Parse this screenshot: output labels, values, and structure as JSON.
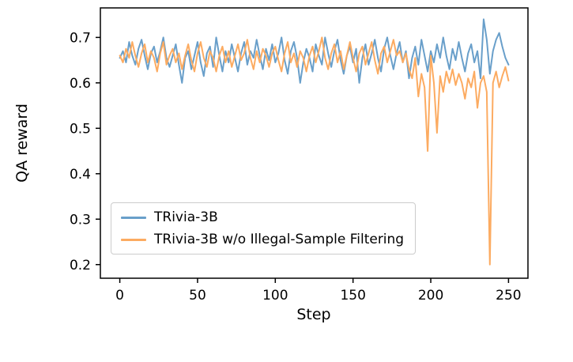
{
  "figure": {
    "background": "#ffffff",
    "axis_color": "#000000",
    "tick_label_color": "#000000"
  },
  "chart_data": {
    "type": "line",
    "title": "",
    "xlabel": "Step",
    "ylabel": "QA reward",
    "xlim": [
      -12.5,
      262.5
    ],
    "ylim": [
      0.17,
      0.765
    ],
    "xticks": [
      0,
      50,
      100,
      150,
      200,
      250
    ],
    "yticks": [
      0.2,
      0.3,
      0.4,
      0.5,
      0.6,
      0.7
    ],
    "grid": false,
    "legend_position": "lower left",
    "x": [
      0,
      2,
      4,
      6,
      8,
      10,
      12,
      14,
      16,
      18,
      20,
      22,
      24,
      26,
      28,
      30,
      32,
      34,
      36,
      38,
      40,
      42,
      44,
      46,
      48,
      50,
      52,
      54,
      56,
      58,
      60,
      62,
      64,
      66,
      68,
      70,
      72,
      74,
      76,
      78,
      80,
      82,
      84,
      86,
      88,
      90,
      92,
      94,
      96,
      98,
      100,
      102,
      104,
      106,
      108,
      110,
      112,
      114,
      116,
      118,
      120,
      122,
      124,
      126,
      128,
      130,
      132,
      134,
      136,
      138,
      140,
      142,
      144,
      146,
      148,
      150,
      152,
      154,
      156,
      158,
      160,
      162,
      164,
      166,
      168,
      170,
      172,
      174,
      176,
      178,
      180,
      182,
      184,
      186,
      188,
      190,
      192,
      194,
      196,
      198,
      200,
      202,
      204,
      206,
      208,
      210,
      212,
      214,
      216,
      218,
      220,
      222,
      224,
      226,
      228,
      230,
      232,
      234,
      236,
      238,
      240,
      242,
      244,
      246,
      248,
      250
    ],
    "series": [
      {
        "name": "TRivia-3B",
        "color": "#699fca",
        "values": [
          0.655,
          0.67,
          0.645,
          0.69,
          0.66,
          0.64,
          0.675,
          0.695,
          0.66,
          0.63,
          0.665,
          0.68,
          0.645,
          0.67,
          0.7,
          0.655,
          0.635,
          0.66,
          0.685,
          0.64,
          0.6,
          0.655,
          0.67,
          0.63,
          0.66,
          0.69,
          0.645,
          0.615,
          0.665,
          0.68,
          0.635,
          0.7,
          0.66,
          0.625,
          0.67,
          0.645,
          0.685,
          0.655,
          0.625,
          0.665,
          0.69,
          0.64,
          0.67,
          0.655,
          0.695,
          0.66,
          0.63,
          0.675,
          0.65,
          0.685,
          0.645,
          0.665,
          0.7,
          0.65,
          0.62,
          0.67,
          0.69,
          0.655,
          0.6,
          0.645,
          0.675,
          0.655,
          0.625,
          0.685,
          0.66,
          0.64,
          0.7,
          0.665,
          0.635,
          0.67,
          0.695,
          0.65,
          0.62,
          0.66,
          0.68,
          0.645,
          0.675,
          0.6,
          0.655,
          0.685,
          0.64,
          0.665,
          0.695,
          0.655,
          0.625,
          0.675,
          0.7,
          0.66,
          0.63,
          0.665,
          0.69,
          0.645,
          0.67,
          0.61,
          0.655,
          0.68,
          0.64,
          0.695,
          0.66,
          0.625,
          0.67,
          0.645,
          0.685,
          0.655,
          0.7,
          0.66,
          0.63,
          0.675,
          0.65,
          0.69,
          0.655,
          0.625,
          0.665,
          0.685,
          0.645,
          0.67,
          0.61,
          0.74,
          0.695,
          0.62,
          0.67,
          0.695,
          0.71,
          0.68,
          0.655,
          0.64
        ]
      },
      {
        "name": "TRivia-3B w/o Illegal-Sample Filtering",
        "color": "#fcab61",
        "values": [
          0.66,
          0.645,
          0.675,
          0.655,
          0.69,
          0.66,
          0.635,
          0.665,
          0.685,
          0.645,
          0.67,
          0.655,
          0.625,
          0.665,
          0.69,
          0.64,
          0.66,
          0.675,
          0.645,
          0.665,
          0.63,
          0.66,
          0.685,
          0.65,
          0.625,
          0.665,
          0.69,
          0.655,
          0.635,
          0.67,
          0.655,
          0.625,
          0.66,
          0.68,
          0.645,
          0.67,
          0.635,
          0.66,
          0.685,
          0.65,
          0.665,
          0.695,
          0.655,
          0.63,
          0.67,
          0.645,
          0.675,
          0.66,
          0.635,
          0.665,
          0.68,
          0.65,
          0.625,
          0.665,
          0.69,
          0.645,
          0.665,
          0.635,
          0.67,
          0.655,
          0.625,
          0.66,
          0.68,
          0.645,
          0.67,
          0.7,
          0.655,
          0.63,
          0.665,
          0.685,
          0.645,
          0.67,
          0.63,
          0.66,
          0.69,
          0.655,
          0.625,
          0.665,
          0.68,
          0.64,
          0.665,
          0.69,
          0.65,
          0.62,
          0.665,
          0.68,
          0.645,
          0.67,
          0.695,
          0.66,
          0.67,
          0.645,
          0.665,
          0.63,
          0.61,
          0.655,
          0.57,
          0.62,
          0.59,
          0.45,
          0.66,
          0.6,
          0.49,
          0.615,
          0.58,
          0.625,
          0.6,
          0.63,
          0.595,
          0.62,
          0.6,
          0.565,
          0.61,
          0.59,
          0.625,
          0.545,
          0.6,
          0.615,
          0.58,
          0.2,
          0.6,
          0.625,
          0.59,
          0.615,
          0.635,
          0.605
        ]
      }
    ]
  }
}
